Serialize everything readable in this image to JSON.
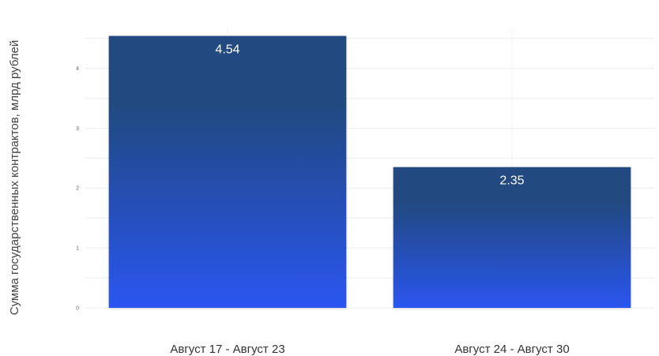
{
  "chart_data": {
    "type": "bar",
    "categories": [
      "Август 17 - Август 23",
      "Август 24 - Август 30"
    ],
    "values": [
      4.54,
      2.35
    ],
    "data_labels": [
      "4.54",
      "2.35"
    ],
    "title": "",
    "xlabel": "",
    "ylabel": "Сумма государственных контрактов, млрд рублей",
    "ylim": [
      0,
      4.56
    ],
    "yticks": [
      0,
      1,
      2,
      3,
      4
    ],
    "grid": true,
    "colors": {
      "bar_top": "#224a80",
      "bar_bottom": "#2a55f0",
      "label": "#ffffff",
      "grid": "#eeeeee"
    }
  }
}
